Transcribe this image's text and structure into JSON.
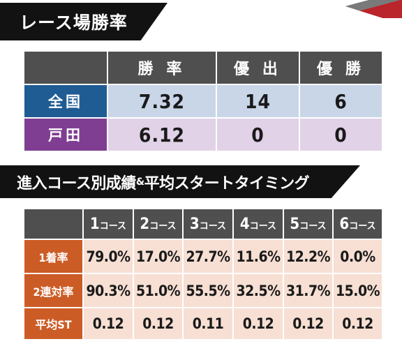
{
  "venue_rate": {
    "title": "レース場勝率",
    "columns": [
      "勝 率",
      "優 出",
      "優 勝"
    ],
    "rows": [
      {
        "label": "全国",
        "values": [
          "7.32",
          "14",
          "6"
        ],
        "color": "#1f5c93",
        "cell_color": "#c9d6e8"
      },
      {
        "label": "戸田",
        "values": [
          "6.12",
          "0",
          "0"
        ],
        "color": "#7f3e91",
        "cell_color": "#e1d2e7"
      }
    ]
  },
  "course_stats": {
    "title": "進入コース別成績",
    "amp": "&",
    "title_tail": "平均スタートタイミング",
    "course_suffix": "コース",
    "courses": [
      "1",
      "2",
      "3",
      "4",
      "5",
      "6"
    ],
    "rows": [
      {
        "label": "1着率",
        "values": [
          "79.0%",
          "17.0%",
          "27.7%",
          "11.6%",
          "12.2%",
          "0.0%"
        ]
      },
      {
        "label": "2連対率",
        "values": [
          "90.3%",
          "51.0%",
          "55.5%",
          "32.5%",
          "31.7%",
          "15.0%"
        ]
      },
      {
        "label": "平均ST",
        "values": [
          "0.12",
          "0.12",
          "0.11",
          "0.12",
          "0.12",
          "0.12"
        ]
      }
    ],
    "header_color": "#cc5c26",
    "cell_color": "#f7dfd3"
  }
}
